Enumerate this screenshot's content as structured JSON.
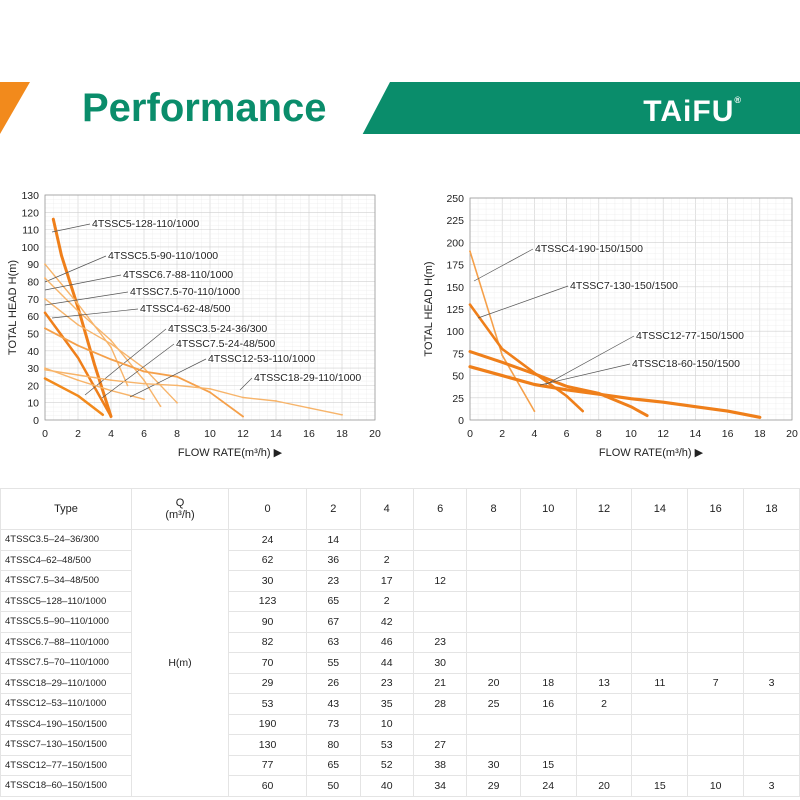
{
  "header": {
    "title": "Performance",
    "logo": "TAiFU",
    "logo_mark": "®"
  },
  "colors": {
    "brand_green": "#0a8d6b",
    "accent_orange": "#f28a1c",
    "series_orange": "#ef7f1a",
    "series_light": "#f7b46a"
  },
  "chart_data": [
    {
      "type": "line",
      "xlabel": "FLOW RATE(m³/h) ▶",
      "ylabel": "TOTAL HEAD H(m)",
      "xlim": [
        0,
        20
      ],
      "ylim": [
        0,
        130
      ],
      "xticks": [
        "0",
        "2",
        "4",
        "6",
        "8",
        "10",
        "12",
        "14",
        "16",
        "18",
        "20"
      ],
      "yticks": [
        "0",
        "10",
        "20",
        "30",
        "40",
        "50",
        "60",
        "70",
        "80",
        "90",
        "100",
        "110",
        "120",
        "130"
      ],
      "grid": true,
      "series": [
        {
          "name": "4TSSC5-128-110/1000",
          "x": [
            0.5,
            1,
            2,
            3,
            4
          ],
          "y": [
            116,
            95,
            65,
            32,
            2
          ]
        },
        {
          "name": "4TSSC5.5-90-110/1000",
          "x": [
            0,
            2,
            4,
            5
          ],
          "y": [
            90,
            67,
            42,
            20
          ]
        },
        {
          "name": "4TSSC6.7-88-110/1000",
          "x": [
            0,
            2,
            4,
            6,
            7
          ],
          "y": [
            82,
            63,
            46,
            23,
            8
          ]
        },
        {
          "name": "4TSSC7.5-70-110/1000",
          "x": [
            0,
            2,
            4,
            6,
            8
          ],
          "y": [
            70,
            55,
            44,
            30,
            10
          ]
        },
        {
          "name": "4TSSC4-62-48/500",
          "x": [
            0,
            2,
            4
          ],
          "y": [
            62,
            36,
            2
          ]
        },
        {
          "name": "4TSSC3.5-24-36/300",
          "x": [
            0,
            2,
            3.5
          ],
          "y": [
            24,
            14,
            3
          ]
        },
        {
          "name": "4TSSC7.5-24-48/500",
          "x": [
            0,
            2,
            4,
            6
          ],
          "y": [
            30,
            23,
            17,
            12
          ]
        },
        {
          "name": "4TSSC12-53-110/1000",
          "x": [
            0,
            2,
            4,
            6,
            8,
            10,
            12
          ],
          "y": [
            53,
            43,
            35,
            28,
            25,
            16,
            2
          ]
        },
        {
          "name": "4TSSC18-29-110/1000",
          "x": [
            0,
            2,
            4,
            6,
            8,
            10,
            12,
            14,
            16,
            18
          ],
          "y": [
            29,
            26,
            23,
            21,
            20,
            18,
            13,
            11,
            7,
            3
          ]
        }
      ]
    },
    {
      "type": "line",
      "xlabel": "FLOW RATE(m³/h) ▶",
      "ylabel": "TOTAL HEAD H(m)",
      "xlim": [
        0,
        20
      ],
      "ylim": [
        0,
        250
      ],
      "xticks": [
        "0",
        "2",
        "4",
        "6",
        "8",
        "10",
        "12",
        "14",
        "16",
        "18",
        "20"
      ],
      "yticks": [
        "0",
        "25",
        "50",
        "75",
        "100",
        "125",
        "150",
        "175",
        "200",
        "225",
        "250"
      ],
      "grid": true,
      "series": [
        {
          "name": "4TSSC4-190-150/1500",
          "x": [
            0,
            2,
            4
          ],
          "y": [
            190,
            73,
            10
          ]
        },
        {
          "name": "4TSSC7-130-150/1500",
          "x": [
            0,
            2,
            4,
            6,
            7
          ],
          "y": [
            130,
            80,
            53,
            27,
            10
          ]
        },
        {
          "name": "4TSSC12-77-150/1500",
          "x": [
            0,
            2,
            4,
            6,
            8,
            10,
            11
          ],
          "y": [
            77,
            65,
            52,
            38,
            30,
            15,
            5
          ]
        },
        {
          "name": "4TSSC18-60-150/1500",
          "x": [
            0,
            2,
            4,
            6,
            8,
            10,
            12,
            14,
            16,
            18
          ],
          "y": [
            60,
            50,
            40,
            34,
            29,
            24,
            20,
            15,
            10,
            3
          ]
        }
      ]
    }
  ],
  "table": {
    "type_header": "Type",
    "q_header": "Q",
    "q_unit": "(m³/h)",
    "flow_columns": [
      "0",
      "2",
      "4",
      "6",
      "8",
      "10",
      "12",
      "14",
      "16",
      "18"
    ],
    "h_label": "H(m)",
    "rows": [
      {
        "type": "4TSSC3.5–24–36/300",
        "values": [
          "24",
          "14",
          "",
          "",
          "",
          "",
          "",
          "",
          "",
          ""
        ]
      },
      {
        "type": "4TSSC4–62–48/500",
        "values": [
          "62",
          "36",
          "2",
          "",
          "",
          "",
          "",
          "",
          "",
          ""
        ]
      },
      {
        "type": "4TSSC7.5–34–48/500",
        "values": [
          "30",
          "23",
          "17",
          "12",
          "",
          "",
          "",
          "",
          "",
          ""
        ]
      },
      {
        "type": "4TSSC5–128–110/1000",
        "values": [
          "123",
          "65",
          "2",
          "",
          "",
          "",
          "",
          "",
          "",
          ""
        ]
      },
      {
        "type": "4TSSC5.5–90–110/1000",
        "values": [
          "90",
          "67",
          "42",
          "",
          "",
          "",
          "",
          "",
          "",
          ""
        ]
      },
      {
        "type": "4TSSC6.7–88–110/1000",
        "values": [
          "82",
          "63",
          "46",
          "23",
          "",
          "",
          "",
          "",
          "",
          ""
        ]
      },
      {
        "type": "4TSSC7.5–70–110/1000",
        "values": [
          "70",
          "55",
          "44",
          "30",
          "",
          "",
          "",
          "",
          "",
          ""
        ]
      },
      {
        "type": "4TSSC18–29–110/1000",
        "values": [
          "29",
          "26",
          "23",
          "21",
          "20",
          "18",
          "13",
          "11",
          "7",
          "3"
        ]
      },
      {
        "type": "4TSSC12–53–110/1000",
        "values": [
          "53",
          "43",
          "35",
          "28",
          "25",
          "16",
          "2",
          "",
          "",
          ""
        ]
      },
      {
        "type": "4TSSC4–190–150/1500",
        "values": [
          "190",
          "73",
          "10",
          "",
          "",
          "",
          "",
          "",
          "",
          ""
        ]
      },
      {
        "type": "4TSSC7–130–150/1500",
        "values": [
          "130",
          "80",
          "53",
          "27",
          "",
          "",
          "",
          "",
          "",
          ""
        ]
      },
      {
        "type": "4TSSC12–77–150/1500",
        "values": [
          "77",
          "65",
          "52",
          "38",
          "30",
          "15",
          "",
          "",
          "",
          ""
        ]
      },
      {
        "type": "4TSSC18–60–150/1500",
        "values": [
          "60",
          "50",
          "40",
          "34",
          "29",
          "24",
          "20",
          "15",
          "10",
          "3"
        ]
      }
    ]
  }
}
